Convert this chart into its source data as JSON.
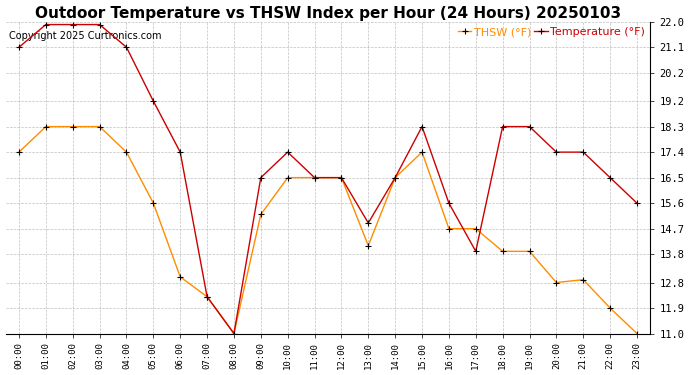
{
  "title": "Outdoor Temperature vs THSW Index per Hour (24 Hours) 20250103",
  "copyright": "Copyright 2025 Curtronics.com",
  "legend_thsw": "THSW (°F)",
  "legend_temp": "Temperature (°F)",
  "hours": [
    "00:00",
    "01:00",
    "02:00",
    "03:00",
    "04:00",
    "05:00",
    "06:00",
    "07:00",
    "08:00",
    "09:00",
    "10:00",
    "11:00",
    "12:00",
    "13:00",
    "14:00",
    "15:00",
    "16:00",
    "17:00",
    "18:00",
    "19:00",
    "20:00",
    "21:00",
    "22:00",
    "23:00"
  ],
  "temperature": [
    21.1,
    21.9,
    21.9,
    21.9,
    21.1,
    19.2,
    17.4,
    12.3,
    11.0,
    16.5,
    17.4,
    16.5,
    16.5,
    14.9,
    16.5,
    18.3,
    15.6,
    13.9,
    18.3,
    18.3,
    17.4,
    17.4,
    16.5,
    15.6
  ],
  "thsw": [
    17.4,
    18.3,
    18.3,
    18.3,
    17.4,
    15.6,
    13.0,
    12.3,
    11.0,
    15.2,
    16.5,
    16.5,
    16.5,
    14.1,
    16.5,
    17.4,
    14.7,
    14.7,
    13.9,
    13.9,
    12.8,
    12.9,
    11.9,
    11.0
  ],
  "temp_color": "#cc0000",
  "thsw_color": "#ff8c00",
  "marker_color": "#000000",
  "ylim_min": 11.0,
  "ylim_max": 22.0,
  "yticks": [
    11.0,
    11.9,
    12.8,
    13.8,
    14.7,
    15.6,
    16.5,
    17.4,
    18.3,
    19.2,
    20.2,
    21.1,
    22.0
  ],
  "background_color": "#ffffff",
  "grid_color": "#b0b0b0",
  "title_fontsize": 11,
  "copyright_fontsize": 7,
  "legend_fontsize": 8,
  "fig_width": 6.9,
  "fig_height": 3.75,
  "dpi": 100
}
